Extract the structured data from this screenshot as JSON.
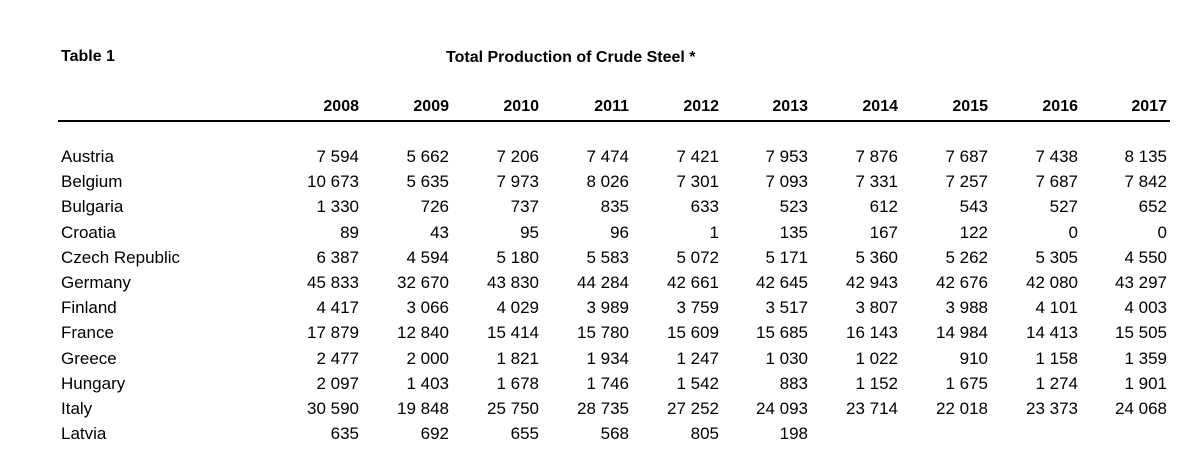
{
  "table_label": "Table 1",
  "title": "Total Production of Crude Steel *",
  "years": [
    "2008",
    "2009",
    "2010",
    "2011",
    "2012",
    "2013",
    "2014",
    "2015",
    "2016",
    "2017"
  ],
  "rows": [
    {
      "country": "Austria",
      "values": [
        "7 594",
        "5 662",
        "7 206",
        "7 474",
        "7 421",
        "7 953",
        "7 876",
        "7 687",
        "7 438",
        "8 135"
      ]
    },
    {
      "country": "Belgium",
      "values": [
        "10 673",
        "5 635",
        "7 973",
        "8 026",
        "7 301",
        "7 093",
        "7 331",
        "7 257",
        "7 687",
        "7 842"
      ]
    },
    {
      "country": "Bulgaria",
      "values": [
        "1 330",
        "726",
        "737",
        "835",
        "633",
        "523",
        "612",
        "543",
        "527",
        "652"
      ]
    },
    {
      "country": "Croatia",
      "values": [
        "89",
        "43",
        "95",
        "96",
        "1",
        "135",
        "167",
        "122",
        "0",
        "0"
      ]
    },
    {
      "country": "Czech Republic",
      "values": [
        "6 387",
        "4 594",
        "5 180",
        "5 583",
        "5 072",
        "5 171",
        "5 360",
        "5 262",
        "5 305",
        "4 550"
      ]
    },
    {
      "country": "Germany",
      "values": [
        "45 833",
        "32 670",
        "43 830",
        "44 284",
        "42 661",
        "42 645",
        "42 943",
        "42 676",
        "42 080",
        "43 297"
      ]
    },
    {
      "country": "Finland",
      "values": [
        "4 417",
        "3 066",
        "4 029",
        "3 989",
        "3 759",
        "3 517",
        "3 807",
        "3 988",
        "4 101",
        "4 003"
      ]
    },
    {
      "country": "France",
      "values": [
        "17 879",
        "12 840",
        "15 414",
        "15 780",
        "15 609",
        "15 685",
        "16 143",
        "14 984",
        "14 413",
        "15 505"
      ]
    },
    {
      "country": "Greece",
      "values": [
        "2 477",
        "2 000",
        "1 821",
        "1 934",
        "1 247",
        "1 030",
        "1 022",
        "910",
        "1 158",
        "1 359"
      ]
    },
    {
      "country": "Hungary",
      "values": [
        "2 097",
        "1 403",
        "1 678",
        "1 746",
        "1 542",
        "883",
        "1 152",
        "1 675",
        "1 274",
        "1 901"
      ]
    },
    {
      "country": "Italy",
      "values": [
        "30 590",
        "19 848",
        "25 750",
        "28 735",
        "27 252",
        "24 093",
        "23 714",
        "22 018",
        "23 373",
        "24 068"
      ]
    },
    {
      "country": "Latvia",
      "values": [
        "635",
        "692",
        "655",
        "568",
        "805",
        "198",
        "",
        "",
        "",
        ""
      ]
    }
  ]
}
